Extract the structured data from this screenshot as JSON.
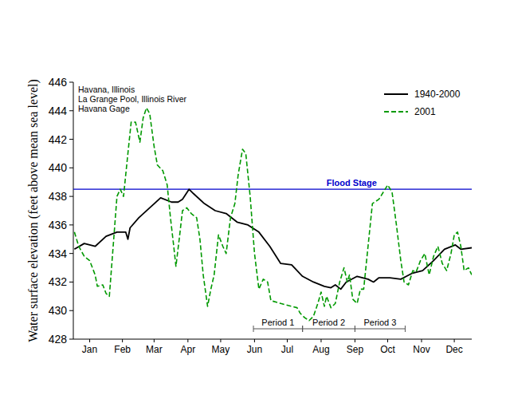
{
  "chart_data": {
    "type": "line",
    "annotations": [
      "Havana, Illinois",
      "La Grange Pool, Illinois River",
      "Havana Gage"
    ],
    "y_label": "Water surface elevation (feet above mean sea level)",
    "xlim": [
      0,
      365
    ],
    "xticks": [
      {
        "value": 15,
        "label": "Jan"
      },
      {
        "value": 45,
        "label": "Feb"
      },
      {
        "value": 74,
        "label": "Mar"
      },
      {
        "value": 105,
        "label": "Apr"
      },
      {
        "value": 135,
        "label": "May"
      },
      {
        "value": 166,
        "label": "Jun"
      },
      {
        "value": 196,
        "label": "Jul"
      },
      {
        "value": 227,
        "label": "Aug"
      },
      {
        "value": 258,
        "label": "Sep"
      },
      {
        "value": 288,
        "label": "Oct"
      },
      {
        "value": 319,
        "label": "Nov"
      },
      {
        "value": 349,
        "label": "Dec"
      }
    ],
    "ylim": [
      428,
      446
    ],
    "yticks": [
      428,
      430,
      432,
      434,
      436,
      438,
      440,
      442,
      444,
      446
    ],
    "legend": "upper right",
    "flood_stage": {
      "label": "Flood Stage",
      "value": 438.5,
      "color": "#0000cc"
    },
    "periods": [
      {
        "label": "Period 1",
        "start": 165,
        "end": 210
      },
      {
        "label": "Period 2",
        "start": 210,
        "end": 258
      },
      {
        "label": "Period 3",
        "start": 258,
        "end": 304
      }
    ],
    "series": [
      {
        "name": "1940-2000",
        "color": "#000000",
        "line_style": "solid",
        "x": [
          1,
          10,
          20,
          30,
          40,
          48,
          50,
          52,
          60,
          70,
          80,
          90,
          96,
          100,
          106,
          110,
          120,
          130,
          140,
          150,
          160,
          170,
          180,
          190,
          200,
          210,
          220,
          230,
          236,
          240,
          245,
          250,
          260,
          270,
          275,
          280,
          290,
          300,
          310,
          320,
          330,
          340,
          350,
          355,
          365
        ],
        "values": [
          434.3,
          434.7,
          434.5,
          435.2,
          435.5,
          435.5,
          435.0,
          435.8,
          436.5,
          437.2,
          437.9,
          437.6,
          437.6,
          437.8,
          438.5,
          438.2,
          437.5,
          437.0,
          436.8,
          436.2,
          436.0,
          435.5,
          434.5,
          433.3,
          433.2,
          432.4,
          432.0,
          431.7,
          431.6,
          431.8,
          431.5,
          432.0,
          432.4,
          432.2,
          432.0,
          432.3,
          432.3,
          432.2,
          432.6,
          432.8,
          433.5,
          434.3,
          434.6,
          434.3,
          434.4
        ]
      },
      {
        "name": "2001",
        "color": "#009900",
        "line_style": "dashed",
        "x": [
          1,
          5,
          10,
          15,
          20,
          22,
          27,
          30,
          33,
          36,
          40,
          43,
          46,
          50,
          53,
          57,
          61,
          64,
          67,
          70,
          74,
          77,
          82,
          86,
          89,
          92,
          94,
          97,
          100,
          104,
          108,
          113,
          116,
          119,
          123,
          126,
          129,
          133,
          137,
          140,
          144,
          148,
          151,
          155,
          158,
          162,
          166,
          170,
          174,
          178,
          181,
          190,
          200,
          205,
          208,
          212,
          216,
          220,
          224,
          227,
          230,
          232,
          236,
          240,
          244,
          248,
          251,
          253,
          256,
          260,
          263,
          266,
          270,
          274,
          280,
          284,
          288,
          292,
          296,
          300,
          303,
          307,
          311,
          314,
          318,
          322,
          326,
          330,
          334,
          338,
          342,
          346,
          349,
          352,
          355,
          358,
          362,
          365
        ],
        "values": [
          435.5,
          434.5,
          433.8,
          433.5,
          432.5,
          431.7,
          431.8,
          431.2,
          431.0,
          434.0,
          438.0,
          438.5,
          438.0,
          441.0,
          443.2,
          443.2,
          441.8,
          443.5,
          444.2,
          443.8,
          441.5,
          440.2,
          439.8,
          438.8,
          436.5,
          434.5,
          433.1,
          435.0,
          437.0,
          437.2,
          436.8,
          436.5,
          435.0,
          432.5,
          430.3,
          431.5,
          432.5,
          435.3,
          434.5,
          434.0,
          436.5,
          437.5,
          439.5,
          441.3,
          441.0,
          438.0,
          434.0,
          431.5,
          432.2,
          432.0,
          430.7,
          430.5,
          430.3,
          430.2,
          429.8,
          429.5,
          429.3,
          429.6,
          430.5,
          431.3,
          430.3,
          431.0,
          430.2,
          430.5,
          432.0,
          433.0,
          432.0,
          432.5,
          430.8,
          430.5,
          431.5,
          431.5,
          434.5,
          437.5,
          437.8,
          438.3,
          438.8,
          438.3,
          436.0,
          433.5,
          432.0,
          431.8,
          432.8,
          432.7,
          433.5,
          434.0,
          432.5,
          433.8,
          434.5,
          433.3,
          432.8,
          434.0,
          435.3,
          435.5,
          434.5,
          432.8,
          433.0,
          432.5
        ]
      }
    ]
  }
}
